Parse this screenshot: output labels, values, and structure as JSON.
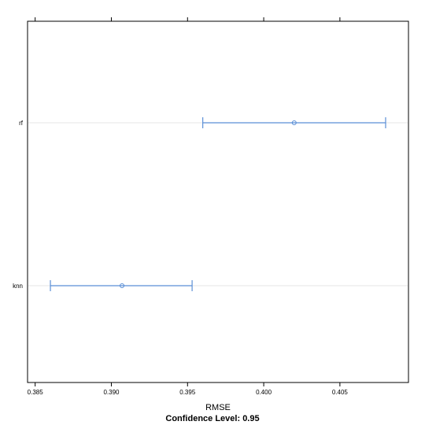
{
  "chart_data": {
    "type": "dotplot-interval",
    "categories": [
      "knn",
      "rf"
    ],
    "series": [
      {
        "points": [
          {
            "category": "knn",
            "estimate": 0.3907,
            "lower": 0.386,
            "upper": 0.3953
          },
          {
            "category": "rf",
            "estimate": 0.402,
            "lower": 0.396,
            "upper": 0.408
          }
        ]
      }
    ],
    "xlabel": "RMSE",
    "subtitle": "Confidence Level: 0.95",
    "xlim": [
      0.3845,
      0.4095
    ],
    "x_ticks": [
      0.385,
      0.39,
      0.395,
      0.4,
      0.405
    ],
    "x_tick_labels": [
      "0.385",
      "0.390",
      "0.395",
      "0.400",
      "0.405"
    ],
    "ticks_top": true,
    "grid": "horizontal reference lines at categories",
    "colors": {
      "interval": "#5b8fd6",
      "reference": "#e6e6e6",
      "frame": "#000000"
    }
  }
}
